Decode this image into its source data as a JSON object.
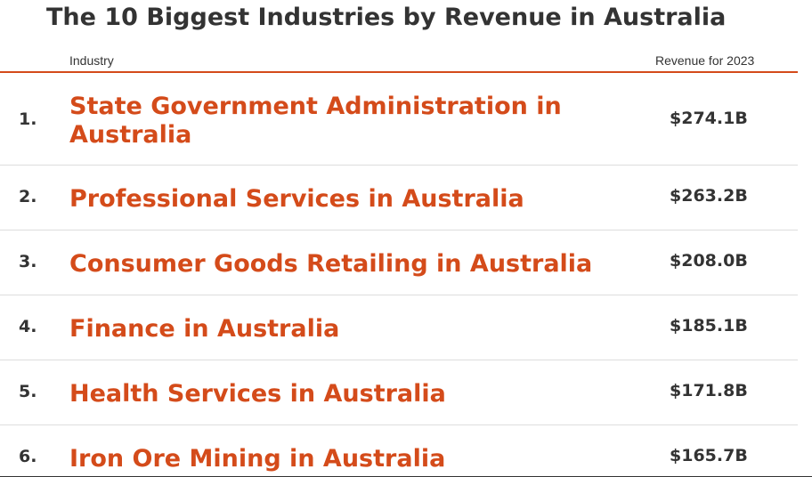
{
  "title": "The 10 Biggest Industries by Revenue in Australia",
  "table": {
    "columns": {
      "industry": "Industry",
      "revenue": "Revenue for 2023"
    },
    "rows": [
      {
        "rank": "1.",
        "name": "State Government Administration in Australia",
        "revenue": "$274.1B"
      },
      {
        "rank": "2.",
        "name": "Professional Services in Australia",
        "revenue": "$263.2B"
      },
      {
        "rank": "3.",
        "name": "Consumer Goods Retailing in Australia",
        "revenue": "$208.0B"
      },
      {
        "rank": "4.",
        "name": "Finance in Australia",
        "revenue": "$185.1B"
      },
      {
        "rank": "5.",
        "name": "Health Services in Australia",
        "revenue": "$171.8B"
      },
      {
        "rank": "6.",
        "name": "Iron Ore Mining in Australia",
        "revenue": "$165.7B"
      }
    ]
  },
  "colors": {
    "accent": "#d44b1a",
    "text": "#333333",
    "divider": "#dddddd"
  }
}
